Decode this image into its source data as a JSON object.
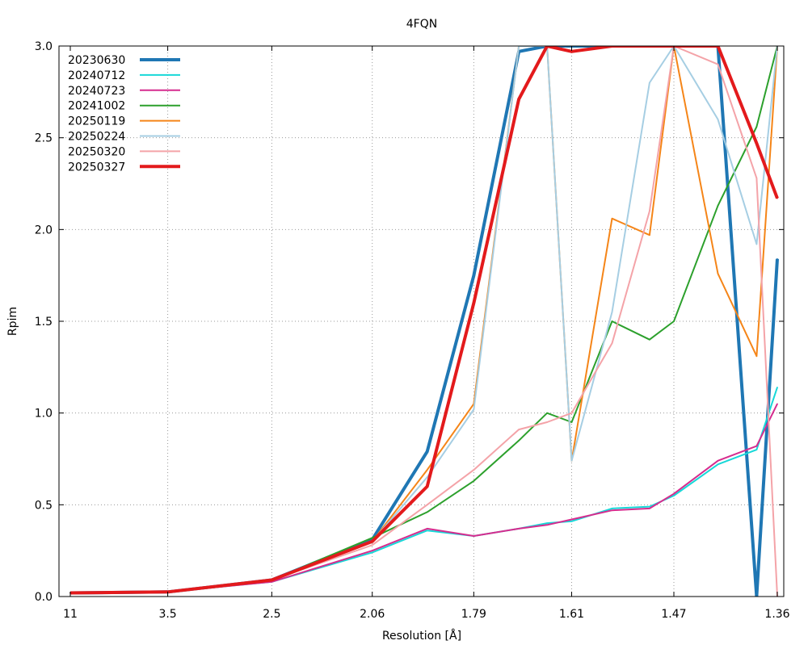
{
  "chart_data": {
    "type": "line",
    "title": "4FQN",
    "xlabel": "Resolution [Å]",
    "ylabel": "Rpim",
    "x_axis_scale": "1/d^2",
    "xticks": [
      "11",
      "3.5",
      "2.5",
      "2.06",
      "1.79",
      "1.61",
      "1.47",
      "1.36"
    ],
    "xlim": [
      11,
      1.36
    ],
    "ylim": [
      0,
      3.0
    ],
    "yticks": [
      "0.0",
      "0.5",
      "1.0",
      "1.5",
      "2.0",
      "2.5",
      "3.0"
    ],
    "grid": true,
    "legend_position": "top-left",
    "series": [
      {
        "name": "20230630",
        "color": "#1f77b4",
        "width": 4,
        "x": [
          11,
          3.5,
          2.5,
          2.06,
          1.9,
          1.79,
          1.7,
          1.65,
          1.61,
          1.55,
          1.5,
          1.47,
          1.42,
          1.38,
          1.36
        ],
        "y": [
          0.02,
          0.025,
          0.09,
          0.31,
          0.79,
          1.75,
          2.97,
          3.0,
          3.0,
          3.0,
          3.0,
          3.0,
          3.0,
          0,
          1.84
        ]
      },
      {
        "name": "20240712",
        "color": "#17d8d8",
        "width": 2,
        "x": [
          11,
          3.5,
          2.5,
          2.06,
          1.9,
          1.79,
          1.7,
          1.65,
          1.61,
          1.55,
          1.5,
          1.47,
          1.42,
          1.38,
          1.36
        ],
        "y": [
          0.02,
          0.025,
          0.08,
          0.24,
          0.36,
          0.33,
          0.37,
          0.4,
          0.41,
          0.48,
          0.49,
          0.55,
          0.72,
          0.8,
          1.14
        ]
      },
      {
        "name": "20240723",
        "color": "#d62c8e",
        "width": 2,
        "x": [
          11,
          3.5,
          2.5,
          2.06,
          1.9,
          1.79,
          1.7,
          1.65,
          1.61,
          1.55,
          1.5,
          1.47,
          1.42,
          1.38,
          1.36
        ],
        "y": [
          0.02,
          0.025,
          0.08,
          0.25,
          0.37,
          0.33,
          0.37,
          0.39,
          0.42,
          0.47,
          0.48,
          0.56,
          0.74,
          0.82,
          1.05
        ]
      },
      {
        "name": "20241002",
        "color": "#2ca02c",
        "width": 2,
        "x": [
          11,
          3.5,
          2.5,
          2.06,
          1.9,
          1.79,
          1.7,
          1.65,
          1.61,
          1.55,
          1.5,
          1.47,
          1.42,
          1.38,
          1.36
        ],
        "y": [
          0.02,
          0.025,
          0.09,
          0.32,
          0.46,
          0.63,
          0.85,
          1.0,
          0.95,
          1.5,
          1.4,
          1.5,
          2.13,
          2.56,
          3.0
        ]
      },
      {
        "name": "20250119",
        "color": "#f58518",
        "width": 2,
        "x": [
          11,
          3.5,
          2.5,
          2.06,
          1.9,
          1.79,
          1.7,
          1.65,
          1.61,
          1.55,
          1.5,
          1.47,
          1.42,
          1.38,
          1.36
        ],
        "y": [
          0.02,
          0.025,
          0.09,
          0.3,
          0.69,
          1.05,
          3.0,
          3.0,
          0.74,
          2.06,
          1.97,
          3.0,
          1.76,
          1.31,
          3.0
        ]
      },
      {
        "name": "20250224",
        "color": "#a6cee3",
        "width": 2,
        "x": [
          11,
          3.5,
          2.5,
          2.06,
          1.9,
          1.79,
          1.7,
          1.65,
          1.61,
          1.55,
          1.5,
          1.47,
          1.42,
          1.38,
          1.36
        ],
        "y": [
          0.02,
          0.025,
          0.09,
          0.3,
          0.65,
          1.02,
          3.0,
          3.0,
          0.74,
          1.55,
          2.8,
          3.0,
          2.6,
          1.92,
          3.0
        ]
      },
      {
        "name": "20250320",
        "color": "#f4a3a8",
        "width": 2,
        "x": [
          11,
          3.5,
          2.5,
          2.06,
          1.9,
          1.79,
          1.7,
          1.65,
          1.61,
          1.55,
          1.5,
          1.47,
          1.42,
          1.38,
          1.36
        ],
        "y": [
          0.02,
          0.025,
          0.09,
          0.28,
          0.5,
          0.69,
          0.91,
          0.95,
          1.0,
          1.38,
          2.1,
          3.0,
          2.9,
          2.28,
          0
        ]
      },
      {
        "name": "20250327",
        "color": "#e31a1c",
        "width": 4,
        "x": [
          11,
          3.5,
          2.5,
          2.06,
          1.9,
          1.79,
          1.7,
          1.65,
          1.61,
          1.55,
          1.5,
          1.47,
          1.42,
          1.38,
          1.36
        ],
        "y": [
          0.02,
          0.025,
          0.09,
          0.3,
          0.6,
          1.6,
          2.71,
          3.0,
          2.97,
          3.0,
          3.0,
          3.0,
          3.0,
          2.47,
          2.17
        ]
      }
    ]
  }
}
